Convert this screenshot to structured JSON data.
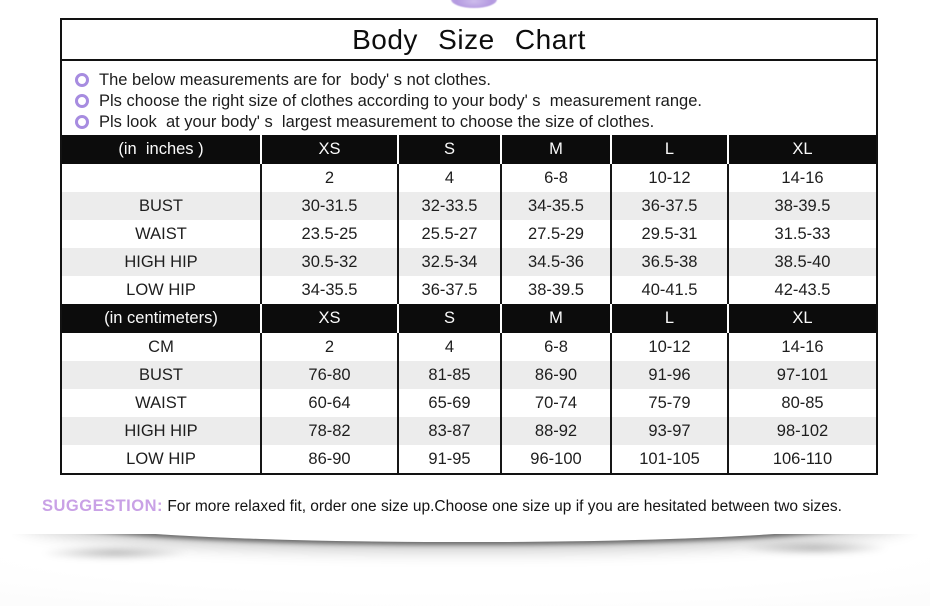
{
  "ornament": {
    "color": "#b49ae0"
  },
  "chart_data": {
    "type": "table",
    "title": "Body Size Chart",
    "columns": [
      "XS",
      "S",
      "M",
      "L",
      "XL"
    ],
    "sections": [
      {
        "unit_label": "(in  inches )",
        "rows": [
          {
            "label": "",
            "values": [
              "2",
              "4",
              "6-8",
              "10-12",
              "14-16"
            ]
          },
          {
            "label": "BUST",
            "values": [
              "30-31.5",
              "32-33.5",
              "34-35.5",
              "36-37.5",
              "38-39.5"
            ]
          },
          {
            "label": "WAIST",
            "values": [
              "23.5-25",
              "25.5-27",
              "27.5-29",
              "29.5-31",
              "31.5-33"
            ]
          },
          {
            "label": "HIGH HIP",
            "values": [
              "30.5-32",
              "32.5-34",
              "34.5-36",
              "36.5-38",
              "38.5-40"
            ]
          },
          {
            "label": "LOW HIP",
            "values": [
              "34-35.5",
              "36-37.5",
              "38-39.5",
              "40-41.5",
              "42-43.5"
            ]
          }
        ]
      },
      {
        "unit_label": "(in centimeters)",
        "rows": [
          {
            "label": "CM",
            "values": [
              "2",
              "4",
              "6-8",
              "10-12",
              "14-16"
            ]
          },
          {
            "label": "BUST",
            "values": [
              "76-80",
              "81-85",
              "86-90",
              "91-96",
              "97-101"
            ]
          },
          {
            "label": "WAIST",
            "values": [
              "60-64",
              "65-69",
              "70-74",
              "75-79",
              "80-85"
            ]
          },
          {
            "label": "HIGH HIP",
            "values": [
              "78-82",
              "83-87",
              "88-92",
              "93-97",
              "98-102"
            ]
          },
          {
            "label": "LOW HIP",
            "values": [
              "86-90",
              "91-95",
              "96-100",
              "101-105",
              "106-110"
            ]
          }
        ]
      }
    ]
  },
  "notes": [
    "The below measurements are for  body' s not clothes.",
    "Pls choose the right size of clothes according to your body' s  measurement range.",
    "Pls look  at your body' s  largest measurement to choose the size of clothes."
  ],
  "suggestion": {
    "label": "SUGGESTION:",
    "text": " For more relaxed fit, order one size up.Choose one size up if you are hesitated between two sizes."
  },
  "colors": {
    "bullet_ring": "#a78ce0",
    "suggestion_label": "#c9a1e6",
    "table_header_bg": "#0c0c0c",
    "table_stripe": "#ececec",
    "border": "#121212"
  }
}
